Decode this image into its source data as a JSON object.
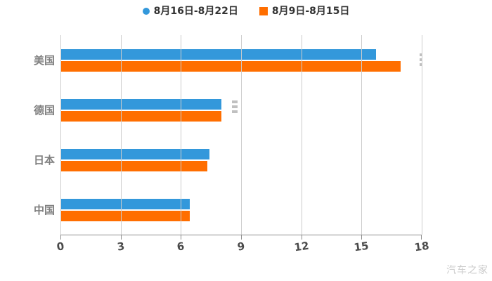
{
  "watermark": "汽车之家",
  "colors": {
    "series1": "#3398DB",
    "series2": "#FF6E00",
    "gridline": "#cccccc",
    "axis_line": "#8c8c8c",
    "tick_label": "#4a4a4a",
    "category_label": "#808080",
    "legend_text": "#333333",
    "watermark_text": "#cccccc",
    "background": "#ffffff"
  },
  "legend": {
    "items": [
      {
        "label": "8月16日-8月22日",
        "marker": "circle",
        "color": "#3398DB"
      },
      {
        "label": "8月9日-8月15日",
        "marker": "square",
        "color": "#FF6E00"
      }
    ]
  },
  "chart_data": {
    "type": "bar",
    "orientation": "horizontal",
    "title": "",
    "xlabel": "",
    "ylabel": "",
    "categories": [
      "美国",
      "德国",
      "日本",
      "中国"
    ],
    "series": [
      {
        "name": "8月16日-8月22日",
        "color": "#3398DB",
        "values": [
          15.7,
          8.0,
          7.4,
          6.4
        ]
      },
      {
        "name": "8月9日-8月15日",
        "color": "#FF6E00",
        "values": [
          16.9,
          8.0,
          7.3,
          6.4
        ]
      }
    ],
    "xlim": [
      0,
      18
    ],
    "x_ticks": [
      0,
      3,
      6,
      9,
      12,
      15,
      18
    ],
    "grid": true,
    "legend_position": "top-center"
  }
}
